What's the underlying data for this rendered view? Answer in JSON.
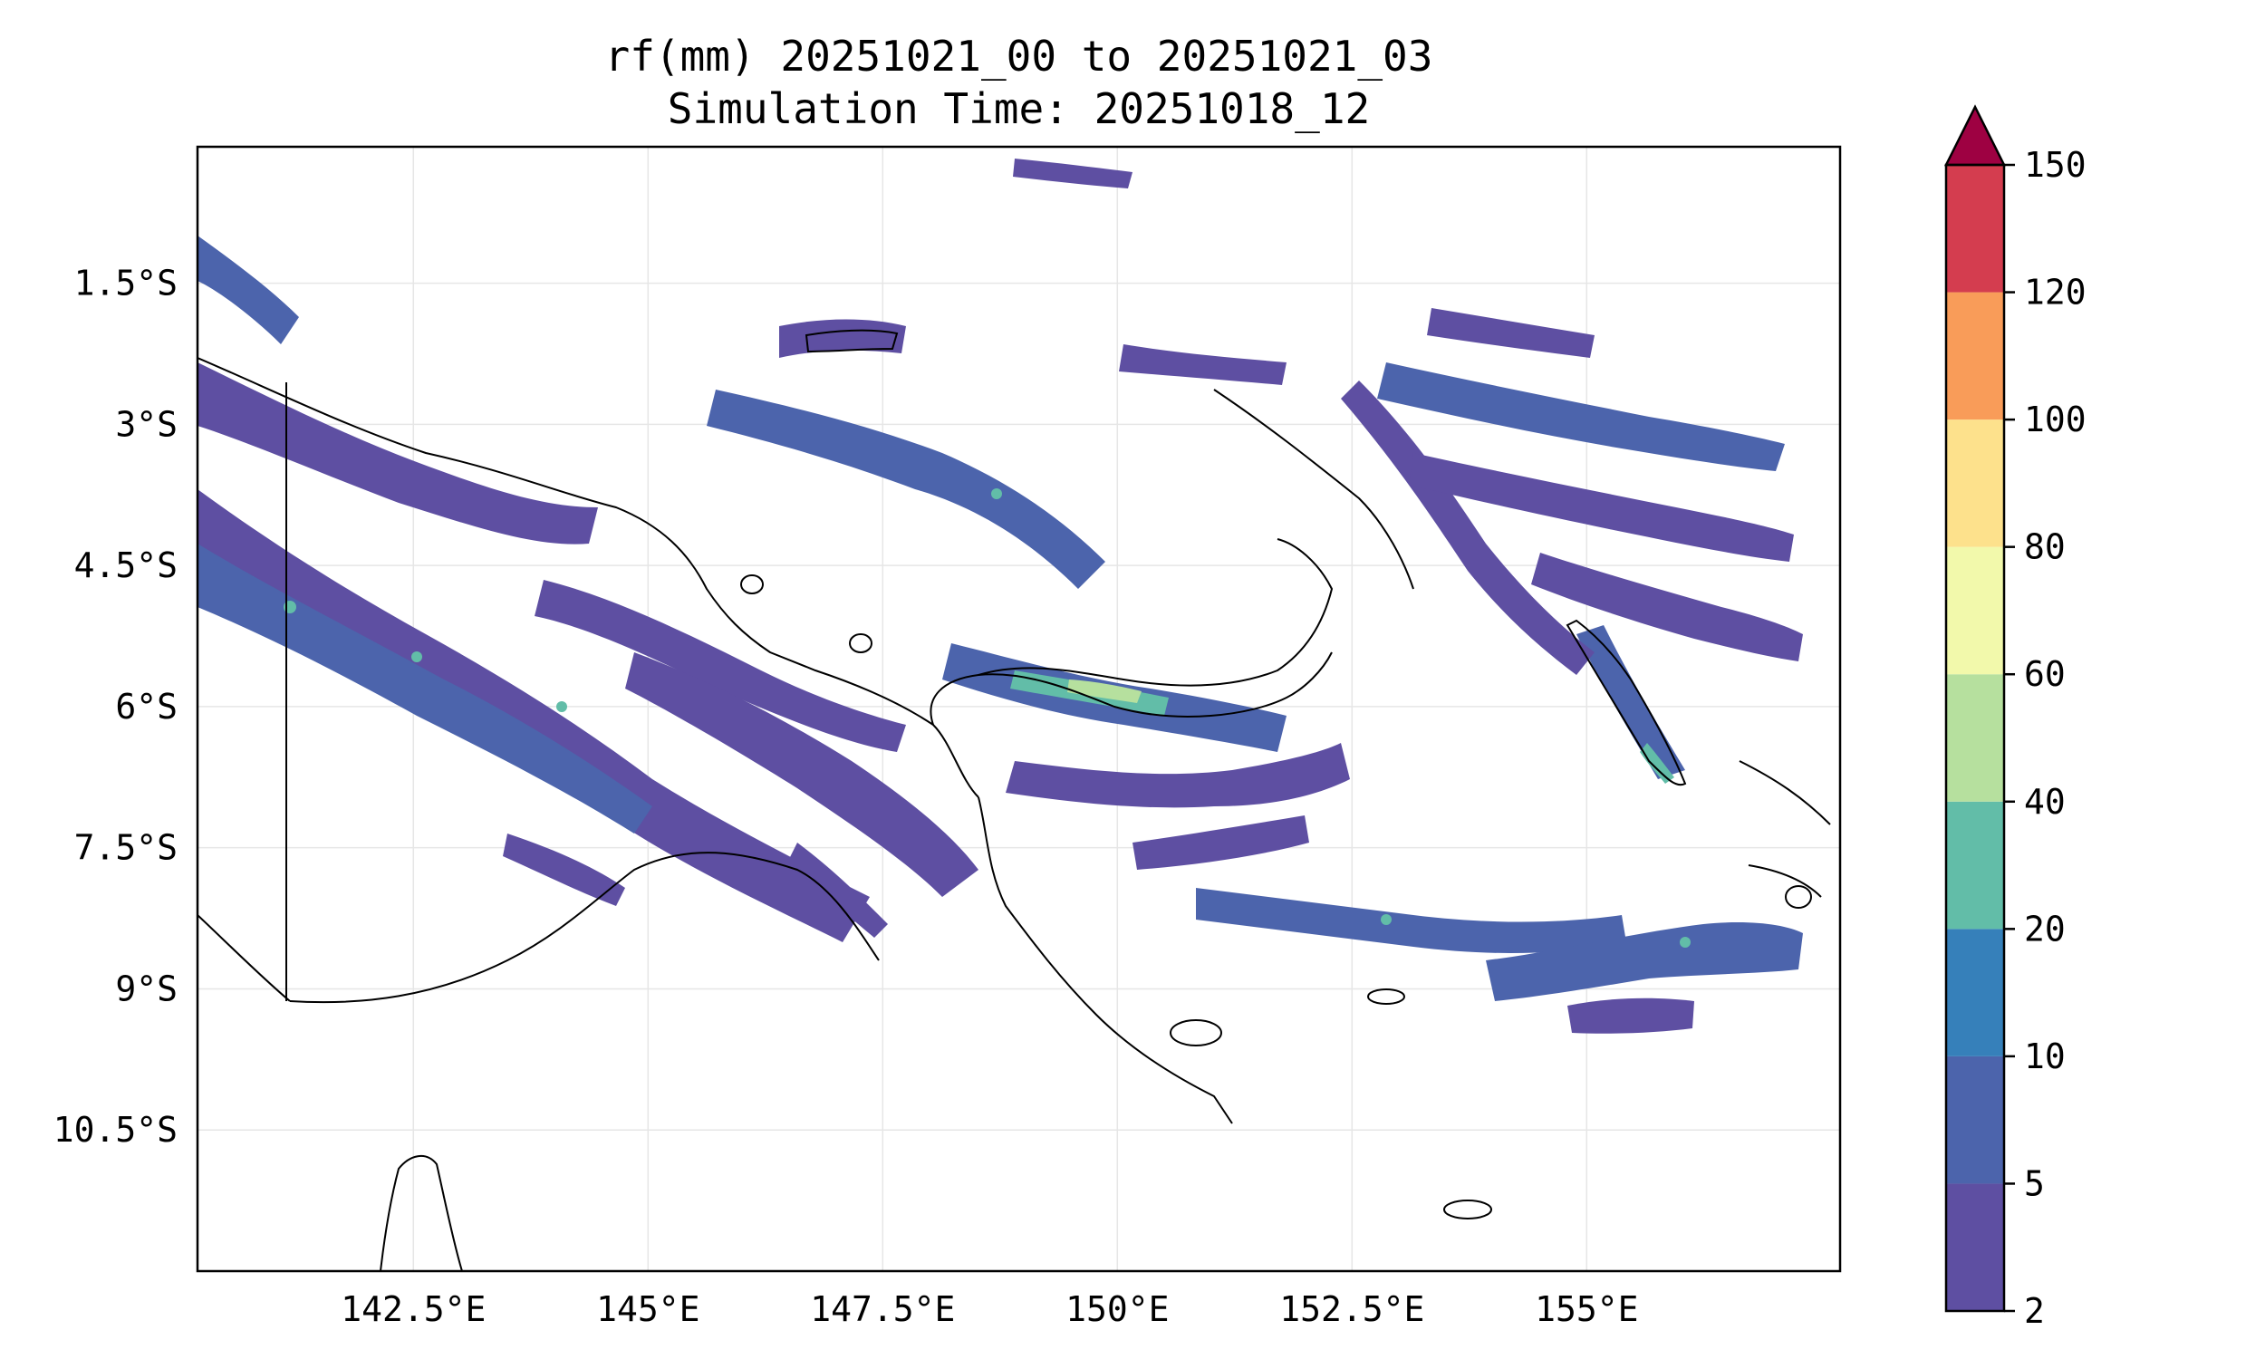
{
  "title": {
    "line1": "rf(mm) 20251021_00 to 20251021_03",
    "line2": "Simulation Time: 20251018_12"
  },
  "map": {
    "lon_range": [
      140.2,
      157.7
    ],
    "lat_range": [
      -12.0,
      -0.05
    ],
    "gridlines": true,
    "lon_ticks": [
      {
        "value": 142.5,
        "label": "142.5°E"
      },
      {
        "value": 145.0,
        "label": "145°E"
      },
      {
        "value": 147.5,
        "label": "147.5°E"
      },
      {
        "value": 150.0,
        "label": "150°E"
      },
      {
        "value": 152.5,
        "label": "152.5°E"
      },
      {
        "value": 155.0,
        "label": "155°E"
      }
    ],
    "lat_ticks": [
      {
        "value": -1.5,
        "label": "1.5°S"
      },
      {
        "value": -3.0,
        "label": "3°S"
      },
      {
        "value": -4.5,
        "label": "4.5°S"
      },
      {
        "value": -6.0,
        "label": "6°S"
      },
      {
        "value": -7.5,
        "label": "7.5°S"
      },
      {
        "value": -9.0,
        "label": "9°S"
      },
      {
        "value": -10.5,
        "label": "10.5°S"
      }
    ]
  },
  "colorbar": {
    "extend": "max",
    "extend_color": "#9e0142",
    "levels": [
      {
        "value": 2,
        "label": "2"
      },
      {
        "value": 5,
        "label": "5"
      },
      {
        "value": 10,
        "label": "10"
      },
      {
        "value": 20,
        "label": "20"
      },
      {
        "value": 40,
        "label": "40"
      },
      {
        "value": 60,
        "label": "60"
      },
      {
        "value": 80,
        "label": "80"
      },
      {
        "value": 100,
        "label": "100"
      },
      {
        "value": 120,
        "label": "120"
      },
      {
        "value": 150,
        "label": "150"
      }
    ],
    "colors": [
      "#5e4fa2",
      "#4c64ac",
      "#3680ba",
      "#62bda8",
      "#b6e09e",
      "#f2f9ab",
      "#fde18c",
      "#f99c59",
      "#d43d4f"
    ]
  }
}
